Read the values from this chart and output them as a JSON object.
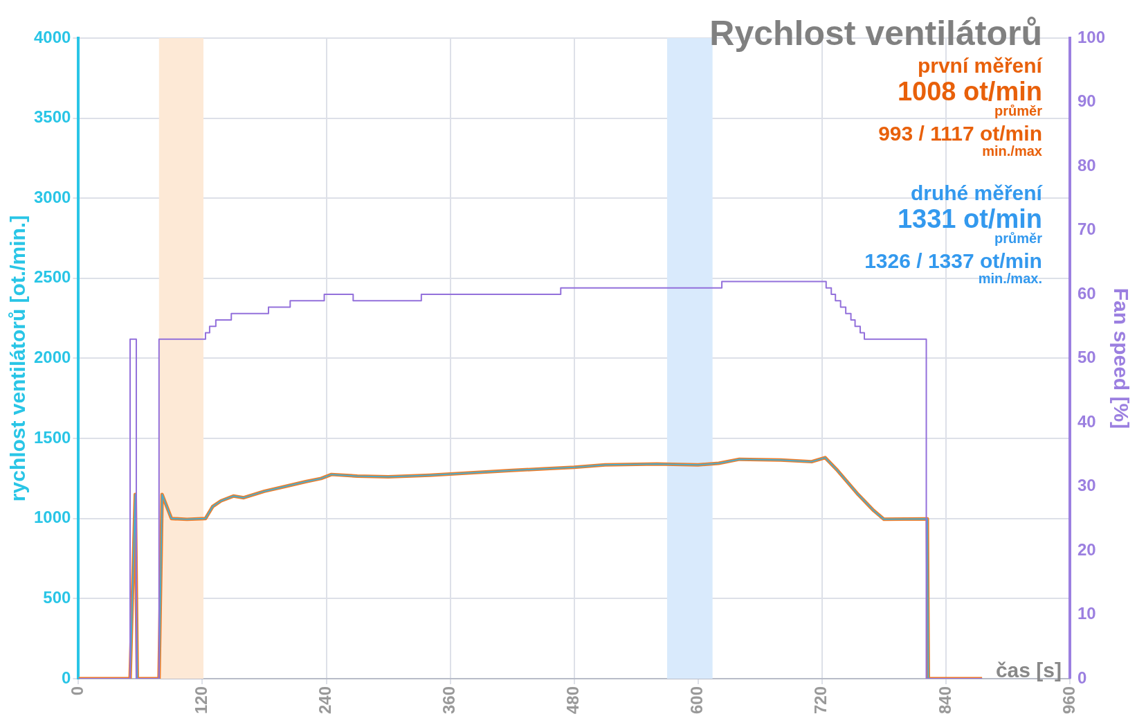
{
  "chart_data": {
    "type": "line",
    "title": "Rychlost ventilátorů",
    "xlabel": "čas [s]",
    "ylabel": "rychlost ventilátorů [ot./min.]",
    "y2label": "Fan speed [%]",
    "xlim": [
      0,
      960
    ],
    "xticks": [
      0,
      120,
      240,
      360,
      480,
      600,
      720,
      840,
      960
    ],
    "ylim": [
      0,
      4000
    ],
    "yticks": [
      0,
      500,
      1000,
      1500,
      2000,
      2500,
      3000,
      3500,
      4000
    ],
    "y2lim": [
      0,
      100
    ],
    "y2ticks": [
      0,
      10,
      20,
      30,
      40,
      50,
      60,
      70,
      80,
      90,
      100
    ],
    "grid": true,
    "bands": [
      {
        "axis": "x",
        "from": 78,
        "to": 121,
        "color": "#fde9d6"
      },
      {
        "axis": "x",
        "from": 570,
        "to": 614,
        "color": "#d9eafc"
      }
    ],
    "series": [
      {
        "color": "#f07d2a",
        "x": [
          0,
          50,
          55,
          57,
          78,
          81,
          90,
          105,
          123,
          130,
          138,
          150,
          160,
          180,
          200,
          220,
          235,
          245,
          270,
          300,
          340,
          380,
          420,
          450,
          480,
          510,
          560,
          600,
          620,
          640,
          680,
          710,
          723,
          735,
          755,
          770,
          780,
          822,
          823,
          875
        ],
        "values": [
          0,
          0,
          1150,
          0,
          0,
          1150,
          1000,
          995,
          1000,
          1075,
          1110,
          1140,
          1130,
          1170,
          1200,
          1230,
          1250,
          1275,
          1265,
          1260,
          1270,
          1285,
          1300,
          1310,
          1320,
          1335,
          1340,
          1335,
          1345,
          1370,
          1365,
          1355,
          1380,
          1300,
          1150,
          1050,
          995,
          998,
          0,
          0
        ]
      },
      {
        "color": "#4aaccc",
        "x": [
          0,
          50,
          55,
          57,
          78,
          81,
          90,
          105,
          123,
          130,
          138,
          150,
          160,
          180,
          200,
          220,
          235,
          245,
          270,
          300,
          340,
          380,
          420,
          450,
          480,
          510,
          560,
          600,
          620,
          640,
          680,
          710,
          723,
          735,
          755,
          770,
          780,
          822,
          823,
          875
        ],
        "values": [
          0,
          0,
          1150,
          0,
          0,
          1150,
          1000,
          995,
          1000,
          1075,
          1110,
          1140,
          1130,
          1170,
          1200,
          1230,
          1250,
          1275,
          1265,
          1260,
          1270,
          1285,
          1300,
          1310,
          1320,
          1335,
          1340,
          1335,
          1345,
          1370,
          1365,
          1355,
          1380,
          1300,
          1150,
          1050,
          995,
          998,
          0,
          0
        ]
      },
      {
        "type": "step",
        "axis": "y2",
        "color": "#9370db",
        "x": [
          0,
          50,
          56,
          78,
          123,
          127,
          133,
          148,
          184,
          205,
          238,
          266,
          332,
          467,
          623,
          724,
          729,
          733,
          738,
          743,
          748,
          752,
          757,
          761,
          821,
          875
        ],
        "values": [
          0,
          53,
          0,
          53,
          54,
          55,
          56,
          57,
          58,
          59,
          60,
          59,
          60,
          61,
          62,
          61,
          60,
          59,
          58,
          57,
          56,
          55,
          54,
          53,
          0,
          0
        ]
      }
    ],
    "annotations": [
      "první měření",
      "1008 ot/min",
      "průměr",
      "993 / 1117 ot/min",
      "min./max",
      "druhé měření",
      "1331 ot/min",
      "průměr",
      "1326 / 1337 ot/min",
      "min./max."
    ]
  }
}
